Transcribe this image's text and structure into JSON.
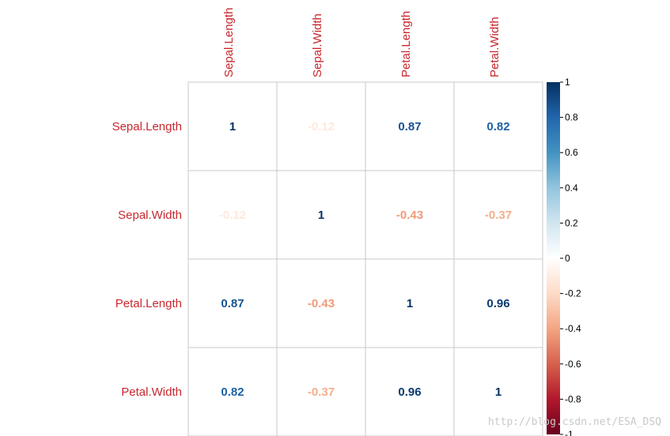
{
  "chart_data": {
    "type": "heatmap",
    "variables": [
      "Sepal.Length",
      "Sepal.Width",
      "Petal.Length",
      "Petal.Width"
    ],
    "matrix": [
      [
        1,
        -0.12,
        0.87,
        0.82
      ],
      [
        -0.12,
        1,
        -0.43,
        -0.37
      ],
      [
        0.87,
        -0.43,
        1,
        0.96
      ],
      [
        0.82,
        -0.37,
        0.96,
        1
      ]
    ],
    "value_labels": [
      [
        "1",
        "-0.12",
        "0.87",
        "0.82"
      ],
      [
        "-0.12",
        "1",
        "-0.43",
        "-0.37"
      ],
      [
        "0.87",
        "-0.43",
        "1",
        "0.96"
      ],
      [
        "0.82",
        "-0.37",
        "0.96",
        "1"
      ]
    ],
    "label_color": "#c8282e",
    "color_scale": {
      "range": [
        -1,
        1
      ],
      "ticks": [
        "1",
        "0.8",
        "0.6",
        "0.4",
        "0.2",
        "0",
        "-0.2",
        "-0.4",
        "-0.6",
        "-0.8",
        "-1"
      ],
      "stops": [
        "#67001f",
        "#b2182b",
        "#d6604d",
        "#f4a582",
        "#fddbc7",
        "#ffffff",
        "#d1e5f0",
        "#92c5de",
        "#4393c3",
        "#2166ac",
        "#053061"
      ]
    },
    "legend_position": "right",
    "grid": true
  },
  "watermark": "http://blog.csdn.net/ESA_DSQ"
}
